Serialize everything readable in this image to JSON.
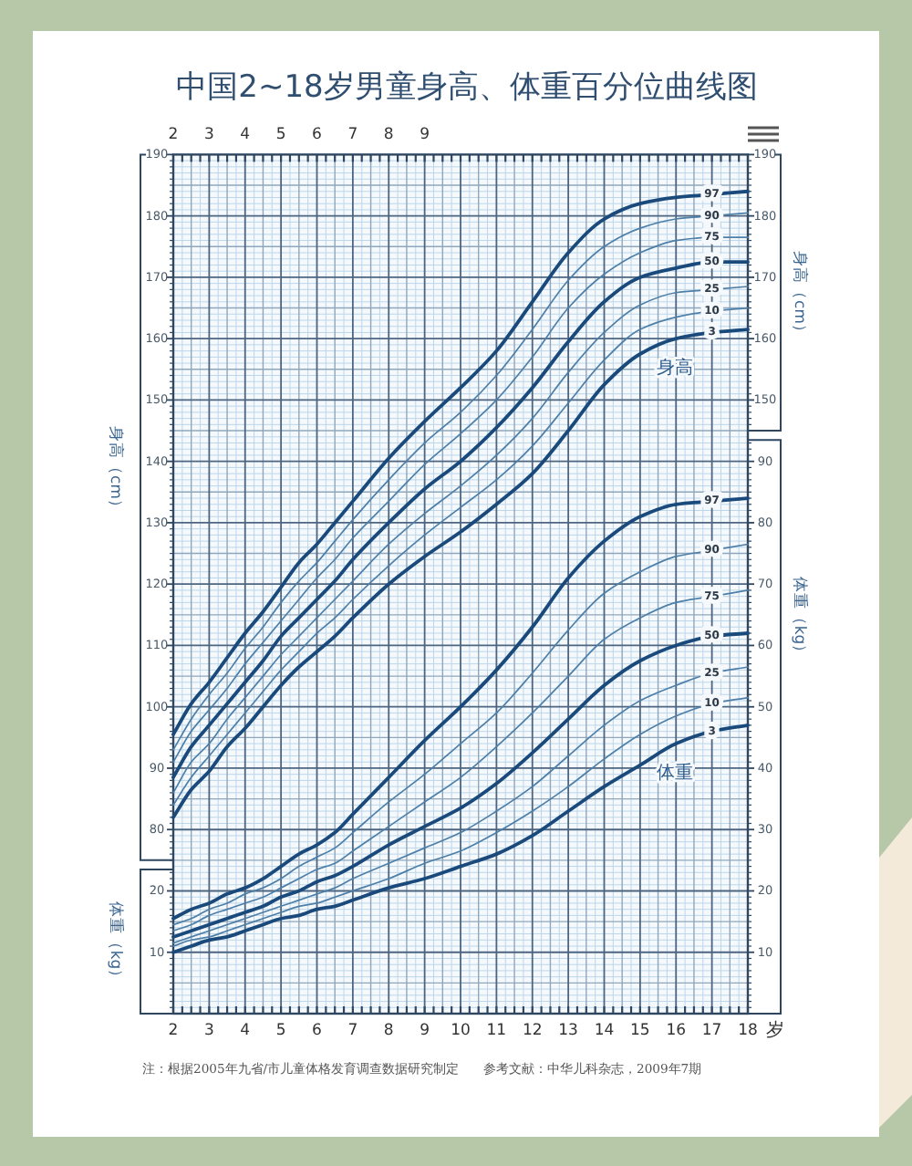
{
  "chart_data": [
    {
      "type": "line",
      "title": "中国2~18岁男童身高、体重百分位曲线图",
      "xlabel": "岁",
      "ylabel": "身高（cm）",
      "y2label": "身高（cm）",
      "x": [
        2,
        2.5,
        3,
        3.5,
        4,
        4.5,
        5,
        5.5,
        6,
        6.5,
        7,
        8,
        9,
        10,
        11,
        12,
        13,
        14,
        15,
        16,
        17,
        18
      ],
      "xlim": [
        2,
        18
      ],
      "xticks": [
        2,
        {
          "value": 2.25,
          "label": null
        },
        {
          "value": 2.5,
          "label": null
        },
        {
          "value": 2.75,
          "label": null
        },
        3,
        {
          "value": 3.25,
          "label": null
        },
        {
          "value": 3.5,
          "label": null
        },
        {
          "value": 3.75,
          "label": null
        },
        4,
        {
          "value": 4.25,
          "label": null
        },
        {
          "value": 4.5,
          "label": null
        },
        {
          "value": 4.75,
          "label": null
        },
        5,
        {
          "value": 5.25,
          "label": null
        },
        {
          "value": 5.5,
          "label": null
        },
        {
          "value": 5.75,
          "label": null
        },
        6,
        {
          "value": 6.25,
          "label": null
        },
        {
          "value": 6.5,
          "label": null
        },
        {
          "value": 6.75,
          "label": null
        },
        7,
        {
          "value": 7.25,
          "label": null
        },
        {
          "value": 7.5,
          "label": null
        },
        {
          "value": 7.75,
          "label": null
        },
        8,
        {
          "value": 8.25,
          "label": null
        },
        {
          "value": 8.5,
          "label": null
        },
        {
          "value": 8.75,
          "label": null
        },
        9,
        {
          "value": 9.25,
          "label": null
        },
        {
          "value": 9.5,
          "label": null
        },
        {
          "value": 9.75,
          "label": null
        },
        10,
        {
          "value": 10.25,
          "label": null
        },
        {
          "value": 10.5,
          "label": null
        },
        {
          "value": 10.75,
          "label": null
        },
        11,
        {
          "value": 11.25,
          "label": null
        },
        {
          "value": 11.5,
          "label": null
        },
        {
          "value": 11.75,
          "label": null
        },
        12,
        {
          "value": 12.25,
          "label": null
        },
        {
          "value": 12.5,
          "label": null
        },
        {
          "value": 12.75,
          "label": null
        },
        13,
        {
          "value": 13.25,
          "label": null
        },
        {
          "value": 13.5,
          "label": null
        },
        {
          "value": 13.75,
          "label": null
        },
        14,
        {
          "value": 14.25,
          "label": null
        },
        {
          "value": 14.5,
          "label": null
        },
        {
          "value": 14.75,
          "label": null
        },
        15,
        {
          "value": 15.25,
          "label": null
        },
        {
          "value": 15.5,
          "label": null
        },
        {
          "value": 15.75,
          "label": null
        },
        16,
        {
          "value": 16.25,
          "label": null
        },
        {
          "value": 16.5,
          "label": null
        },
        {
          "value": 16.75,
          "label": null
        },
        17,
        {
          "value": 17.25,
          "label": null
        },
        {
          "value": 17.5,
          "label": null
        },
        {
          "value": 17.75,
          "label": null
        },
        18
      ],
      "x2lim": [
        2,
        18
      ],
      "x2ticks": [
        2,
        3,
        4,
        5,
        6,
        7,
        8,
        9
      ],
      "ylim": [
        50,
        190
      ],
      "yticks": [
        {
          "value": 51,
          "label": null
        },
        {
          "value": 52,
          "label": null
        },
        {
          "value": 53,
          "label": null
        },
        {
          "value": 54,
          "label": null
        },
        {
          "value": 55,
          "label": null
        },
        {
          "value": 56,
          "label": null
        },
        {
          "value": 57,
          "label": null
        },
        {
          "value": 58,
          "label": null
        },
        {
          "value": 59,
          "label": null
        },
        {
          "value": 60,
          "label": null
        },
        {
          "value": 61,
          "label": null
        },
        {
          "value": 62,
          "label": null
        },
        {
          "value": 63,
          "label": null
        },
        {
          "value": 64,
          "label": null
        },
        {
          "value": 65,
          "label": null
        },
        {
          "value": 66,
          "label": null
        },
        {
          "value": 67,
          "label": null
        },
        {
          "value": 68,
          "label": null
        },
        {
          "value": 69,
          "label": null
        },
        {
          "value": 70,
          "label": null
        },
        {
          "value": 71,
          "label": null
        },
        {
          "value": 72,
          "label": null
        },
        {
          "value": 73,
          "label": null
        },
        {
          "value": 74,
          "label": null
        },
        {
          "value": 75,
          "label": null
        },
        {
          "value": 76,
          "label": null
        },
        {
          "value": 77,
          "label": null
        },
        {
          "value": 78,
          "label": null
        },
        {
          "value": 79,
          "label": null
        },
        80,
        {
          "value": 81,
          "label": null
        },
        {
          "value": 82,
          "label": null
        },
        {
          "value": 83,
          "label": null
        },
        {
          "value": 84,
          "label": null
        },
        {
          "value": 85,
          "label": null
        },
        {
          "value": 86,
          "label": null
        },
        {
          "value": 87,
          "label": null
        },
        {
          "value": 88,
          "label": null
        },
        {
          "value": 89,
          "label": null
        },
        90,
        {
          "value": 91,
          "label": null
        },
        {
          "value": 92,
          "label": null
        },
        {
          "value": 93,
          "label": null
        },
        {
          "value": 94,
          "label": null
        },
        {
          "value": 95,
          "label": null
        },
        {
          "value": 96,
          "label": null
        },
        {
          "value": 97,
          "label": null
        },
        {
          "value": 98,
          "label": null
        },
        {
          "value": 99,
          "label": null
        },
        100,
        {
          "value": 101,
          "label": null
        },
        {
          "value": 102,
          "label": null
        },
        {
          "value": 103,
          "label": null
        },
        {
          "value": 104,
          "label": null
        },
        {
          "value": 105,
          "label": null
        },
        {
          "value": 106,
          "label": null
        },
        {
          "value": 107,
          "label": null
        },
        {
          "value": 108,
          "label": null
        },
        {
          "value": 109,
          "label": null
        },
        110,
        {
          "value": 111,
          "label": null
        },
        {
          "value": 112,
          "label": null
        },
        {
          "value": 113,
          "label": null
        },
        {
          "value": 114,
          "label": null
        },
        {
          "value": 115,
          "label": null
        },
        {
          "value": 116,
          "label": null
        },
        {
          "value": 117,
          "label": null
        },
        {
          "value": 118,
          "label": null
        },
        {
          "value": 119,
          "label": null
        },
        120,
        {
          "value": 121,
          "label": null
        },
        {
          "value": 122,
          "label": null
        },
        {
          "value": 123,
          "label": null
        },
        {
          "value": 124,
          "label": null
        },
        {
          "value": 125,
          "label": null
        },
        {
          "value": 126,
          "label": null
        },
        {
          "value": 127,
          "label": null
        },
        {
          "value": 128,
          "label": null
        },
        {
          "value": 129,
          "label": null
        },
        130,
        {
          "value": 131,
          "label": null
        },
        {
          "value": 132,
          "label": null
        },
        {
          "value": 133,
          "label": null
        },
        {
          "value": 134,
          "label": null
        },
        {
          "value": 135,
          "label": null
        },
        {
          "value": 136,
          "label": null
        },
        {
          "value": 137,
          "label": null
        },
        {
          "value": 138,
          "label": null
        },
        {
          "value": 139,
          "label": null
        },
        140,
        {
          "value": 141,
          "label": null
        },
        {
          "value": 142,
          "label": null
        },
        {
          "value": 143,
          "label": null
        },
        {
          "value": 144,
          "label": null
        },
        {
          "value": 145,
          "label": null
        },
        {
          "value": 146,
          "label": null
        },
        {
          "value": 147,
          "label": null
        },
        {
          "value": 148,
          "label": null
        },
        {
          "value": 149,
          "label": null
        },
        150,
        {
          "value": 151,
          "label": null
        },
        {
          "value": 152,
          "label": null
        },
        {
          "value": 153,
          "label": null
        },
        {
          "value": 154,
          "label": null
        },
        {
          "value": 155,
          "label": null
        },
        {
          "value": 156,
          "label": null
        },
        {
          "value": 157,
          "label": null
        },
        {
          "value": 158,
          "label": null
        },
        {
          "value": 159,
          "label": null
        },
        160,
        {
          "value": 161,
          "label": null
        },
        {
          "value": 162,
          "label": null
        },
        {
          "value": 163,
          "label": null
        },
        {
          "value": 164,
          "label": null
        },
        {
          "value": 165,
          "label": null
        },
        {
          "value": 166,
          "label": null
        },
        {
          "value": 167,
          "label": null
        },
        {
          "value": 168,
          "label": null
        },
        {
          "value": 169,
          "label": null
        },
        170,
        {
          "value": 171,
          "label": null
        },
        {
          "value": 172,
          "label": null
        },
        {
          "value": 173,
          "label": null
        },
        {
          "value": 174,
          "label": null
        },
        {
          "value": 175,
          "label": null
        },
        {
          "value": 176,
          "label": null
        },
        {
          "value": 177,
          "label": null
        },
        {
          "value": 178,
          "label": null
        },
        {
          "value": 179,
          "label": null
        },
        180,
        {
          "value": 181,
          "label": null
        },
        {
          "value": 182,
          "label": null
        },
        {
          "value": 183,
          "label": null
        },
        {
          "value": 184,
          "label": null
        },
        {
          "value": 185,
          "label": null
        },
        {
          "value": 186,
          "label": null
        },
        {
          "value": 187,
          "label": null
        },
        {
          "value": 188,
          "label": null
        },
        {
          "value": 189,
          "label": null
        },
        190
      ],
      "y2lim": [
        50,
        190
      ],
      "y2ticks": [
        {
          "value": 146,
          "label": null
        },
        {
          "value": 147,
          "label": null
        },
        {
          "value": 148,
          "label": null
        },
        {
          "value": 149,
          "label": null
        },
        150,
        {
          "value": 151,
          "label": null
        },
        {
          "value": 152,
          "label": null
        },
        {
          "value": 153,
          "label": null
        },
        {
          "value": 154,
          "label": null
        },
        {
          "value": 155,
          "label": null
        },
        {
          "value": 156,
          "label": null
        },
        {
          "value": 157,
          "label": null
        },
        {
          "value": 158,
          "label": null
        },
        {
          "value": 159,
          "label": null
        },
        160,
        {
          "value": 161,
          "label": null
        },
        {
          "value": 162,
          "label": null
        },
        {
          "value": 163,
          "label": null
        },
        {
          "value": 164,
          "label": null
        },
        {
          "value": 165,
          "label": null
        },
        {
          "value": 166,
          "label": null
        },
        {
          "value": 167,
          "label": null
        },
        {
          "value": 168,
          "label": null
        },
        {
          "value": 169,
          "label": null
        },
        170,
        {
          "value": 171,
          "label": null
        },
        {
          "value": 172,
          "label": null
        },
        {
          "value": 173,
          "label": null
        },
        {
          "value": 174,
          "label": null
        },
        {
          "value": 175,
          "label": null
        },
        {
          "value": 176,
          "label": null
        },
        {
          "value": 177,
          "label": null
        },
        {
          "value": 178,
          "label": null
        },
        {
          "value": 179,
          "label": null
        },
        180,
        {
          "value": 181,
          "label": null
        },
        {
          "value": 182,
          "label": null
        },
        {
          "value": 183,
          "label": null
        },
        {
          "value": 184,
          "label": null
        },
        {
          "value": 185,
          "label": null
        },
        {
          "value": 186,
          "label": null
        },
        {
          "value": 187,
          "label": null
        },
        {
          "value": 188,
          "label": null
        },
        {
          "value": 189,
          "label": null
        },
        190
      ],
      "grid": true,
      "series": [
        {
          "name": "97",
          "color": "#1a4a7c",
          "values": [
            95.5,
            100.5,
            104,
            108,
            112,
            115.5,
            119.5,
            123.5,
            126.5,
            130,
            133.5,
            140.5,
            146.5,
            152,
            158,
            166,
            174,
            179.5,
            182,
            183,
            183.5,
            184
          ]
        },
        {
          "name": "90",
          "color": "#4d7fa8",
          "values": [
            93,
            98,
            102,
            105.5,
            109.5,
            113,
            117,
            120.5,
            123.5,
            127,
            130.5,
            137,
            143,
            148,
            154,
            161.5,
            169.5,
            175,
            178,
            179.5,
            180,
            180.5
          ]
        },
        {
          "name": "75",
          "color": "#4d7fa8",
          "values": [
            91,
            96,
            99.5,
            103,
            107,
            110.5,
            114,
            117.5,
            121,
            124,
            127.5,
            133.5,
            139.5,
            144.5,
            150,
            157,
            165,
            170.5,
            174,
            176,
            176.5,
            176.5
          ]
        },
        {
          "name": "50",
          "color": "#1a4a7c",
          "values": [
            88.5,
            93.5,
            97,
            100.5,
            104,
            107.5,
            111.5,
            114.5,
            117.5,
            120.5,
            124,
            130,
            135.5,
            140,
            145.5,
            152,
            159.5,
            166,
            170,
            171.5,
            172.5,
            172.5
          ]
        },
        {
          "name": "25",
          "color": "#4d7fa8",
          "values": [
            86,
            91,
            94,
            98,
            101.5,
            105,
            108.5,
            111.5,
            114.5,
            117.5,
            120.5,
            126.5,
            131.5,
            136,
            141,
            147,
            154.5,
            161,
            165.5,
            167.5,
            168,
            168.5
          ]
        },
        {
          "name": "10",
          "color": "#4d7fa8",
          "values": [
            84,
            88.5,
            92,
            95.5,
            99,
            102.5,
            106,
            109,
            112,
            114.5,
            117.5,
            123,
            128,
            132.5,
            137,
            142.5,
            149.5,
            156.5,
            161.5,
            163.5,
            164.5,
            165
          ]
        },
        {
          "name": "3",
          "color": "#1a4a7c",
          "values": [
            82,
            86.5,
            89.5,
            93.5,
            96.5,
            100,
            103.5,
            106.5,
            109,
            111.5,
            114.5,
            120,
            124.5,
            128.5,
            133,
            138,
            145,
            152.5,
            157.5,
            160,
            161,
            161.5
          ]
        }
      ],
      "annotations": [
        "身高",
        "注：根据2005年九省/市儿童体格发育调查数据研究制定",
        "参考文献：中华儿科杂志，2009年7期"
      ]
    },
    {
      "type": "line",
      "ylabel": "体重（kg）",
      "y2label": "体重（kg）",
      "tick_labels": "y",
      "x": [
        2,
        2.5,
        3,
        3.5,
        4,
        4.5,
        5,
        5.5,
        6,
        6.5,
        7,
        8,
        9,
        10,
        11,
        12,
        13,
        14,
        15,
        16,
        17,
        18
      ],
      "xlim": [
        2,
        18
      ],
      "ylim": [
        0,
        140
      ],
      "yticks": [
        {
          "value": 1,
          "label": null
        },
        {
          "value": 2,
          "label": null
        },
        {
          "value": 3,
          "label": null
        },
        {
          "value": 4,
          "label": null
        },
        {
          "value": 5,
          "label": null
        },
        {
          "value": 6,
          "label": null
        },
        {
          "value": 7,
          "label": null
        },
        {
          "value": 8,
          "label": null
        },
        {
          "value": 9,
          "label": null
        },
        10,
        {
          "value": 11,
          "label": null
        },
        {
          "value": 12,
          "label": null
        },
        {
          "value": 13,
          "label": null
        },
        {
          "value": 14,
          "label": null
        },
        {
          "value": 15,
          "label": null
        },
        {
          "value": 16,
          "label": null
        },
        {
          "value": 17,
          "label": null
        },
        {
          "value": 18,
          "label": null
        },
        {
          "value": 19,
          "label": null
        },
        20,
        {
          "value": 21,
          "label": null
        },
        {
          "value": 22,
          "label": null
        },
        {
          "value": 23,
          "label": null
        }
      ],
      "y2lim": [
        0,
        140
      ],
      "y2ticks": [
        {
          "value": 1,
          "label": null
        },
        {
          "value": 2,
          "label": null
        },
        {
          "value": 3,
          "label": null
        },
        {
          "value": 4,
          "label": null
        },
        {
          "value": 5,
          "label": null
        },
        {
          "value": 6,
          "label": null
        },
        {
          "value": 7,
          "label": null
        },
        {
          "value": 8,
          "label": null
        },
        {
          "value": 9,
          "label": null
        },
        10,
        {
          "value": 11,
          "label": null
        },
        {
          "value": 12,
          "label": null
        },
        {
          "value": 13,
          "label": null
        },
        {
          "value": 14,
          "label": null
        },
        {
          "value": 15,
          "label": null
        },
        {
          "value": 16,
          "label": null
        },
        {
          "value": 17,
          "label": null
        },
        {
          "value": 18,
          "label": null
        },
        {
          "value": 19,
          "label": null
        },
        20,
        {
          "value": 21,
          "label": null
        },
        {
          "value": 22,
          "label": null
        },
        {
          "value": 23,
          "label": null
        },
        {
          "value": 24,
          "label": null
        },
        {
          "value": 25,
          "label": null
        },
        {
          "value": 26,
          "label": null
        },
        {
          "value": 27,
          "label": null
        },
        {
          "value": 28,
          "label": null
        },
        {
          "value": 29,
          "label": null
        },
        30,
        {
          "value": 31,
          "label": null
        },
        {
          "value": 32,
          "label": null
        },
        {
          "value": 33,
          "label": null
        },
        {
          "value": 34,
          "label": null
        },
        {
          "value": 35,
          "label": null
        },
        {
          "value": 36,
          "label": null
        },
        {
          "value": 37,
          "label": null
        },
        {
          "value": 38,
          "label": null
        },
        {
          "value": 39,
          "label": null
        },
        40,
        {
          "value": 41,
          "label": null
        },
        {
          "value": 42,
          "label": null
        },
        {
          "value": 43,
          "label": null
        },
        {
          "value": 44,
          "label": null
        },
        {
          "value": 45,
          "label": null
        },
        {
          "value": 46,
          "label": null
        },
        {
          "value": 47,
          "label": null
        },
        {
          "value": 48,
          "label": null
        },
        {
          "value": 49,
          "label": null
        },
        50,
        {
          "value": 51,
          "label": null
        },
        {
          "value": 52,
          "label": null
        },
        {
          "value": 53,
          "label": null
        },
        {
          "value": 54,
          "label": null
        },
        {
          "value": 55,
          "label": null
        },
        {
          "value": 56,
          "label": null
        },
        {
          "value": 57,
          "label": null
        },
        {
          "value": 58,
          "label": null
        },
        {
          "value": 59,
          "label": null
        },
        60,
        {
          "value": 61,
          "label": null
        },
        {
          "value": 62,
          "label": null
        },
        {
          "value": 63,
          "label": null
        },
        {
          "value": 64,
          "label": null
        },
        {
          "value": 65,
          "label": null
        },
        {
          "value": 66,
          "label": null
        },
        {
          "value": 67,
          "label": null
        },
        {
          "value": 68,
          "label": null
        },
        {
          "value": 69,
          "label": null
        },
        70,
        {
          "value": 71,
          "label": null
        },
        {
          "value": 72,
          "label": null
        },
        {
          "value": 73,
          "label": null
        },
        {
          "value": 74,
          "label": null
        },
        {
          "value": 75,
          "label": null
        },
        {
          "value": 76,
          "label": null
        },
        {
          "value": 77,
          "label": null
        },
        {
          "value": 78,
          "label": null
        },
        {
          "value": 79,
          "label": null
        },
        80,
        {
          "value": 81,
          "label": null
        },
        {
          "value": 82,
          "label": null
        },
        {
          "value": 83,
          "label": null
        },
        {
          "value": 84,
          "label": null
        },
        {
          "value": 85,
          "label": null
        },
        {
          "value": 86,
          "label": null
        },
        {
          "value": 87,
          "label": null
        },
        {
          "value": 88,
          "label": null
        },
        {
          "value": 89,
          "label": null
        },
        90,
        {
          "value": 91,
          "label": null
        },
        {
          "value": 92,
          "label": null
        },
        {
          "value": 93,
          "label": null
        }
      ],
      "series": [
        {
          "name": "97",
          "color": "#1a4a7c",
          "values": [
            15.5,
            17,
            18,
            19.5,
            20.5,
            22,
            24,
            26,
            27.5,
            29.5,
            32.5,
            38.5,
            44.5,
            50,
            56,
            63,
            71,
            77,
            81,
            83,
            83.5,
            84
          ]
        },
        {
          "name": "90",
          "color": "#4d7fa8",
          "values": [
            14.5,
            15.5,
            17,
            18,
            19.5,
            20.5,
            22,
            24,
            25.5,
            27,
            29.5,
            34.5,
            39,
            44,
            49,
            55.5,
            62.5,
            68.5,
            72,
            74.5,
            75.5,
            76.5
          ]
        },
        {
          "name": "75",
          "color": "#4d7fa8",
          "values": [
            13.5,
            14.5,
            16,
            17,
            18,
            19,
            20.5,
            22,
            23.5,
            24.5,
            26.5,
            30.5,
            34.5,
            38.5,
            43.5,
            49,
            55,
            61,
            64.5,
            67,
            68,
            69
          ]
        },
        {
          "name": "50",
          "color": "#1a4a7c",
          "values": [
            12.5,
            13.5,
            14.5,
            15.5,
            16.5,
            17.5,
            19,
            20,
            21.5,
            22.5,
            24,
            27.5,
            30.5,
            33.5,
            37.5,
            42.5,
            48,
            53.5,
            57.5,
            60,
            61.5,
            62
          ]
        },
        {
          "name": "25",
          "color": "#4d7fa8",
          "values": [
            11.5,
            12.5,
            13.5,
            14.5,
            15.5,
            16.5,
            17.5,
            18.5,
            19.5,
            20.5,
            22,
            24.5,
            27,
            29.5,
            33,
            37,
            42,
            47,
            51,
            53.5,
            55.5,
            56.5
          ]
        },
        {
          "name": "10",
          "color": "#4d7fa8",
          "values": [
            11,
            12,
            12.5,
            13.5,
            14.5,
            15.5,
            16.5,
            17.5,
            18,
            19,
            20,
            22,
            24.5,
            26.5,
            29.5,
            33,
            37,
            41.5,
            45.5,
            48.5,
            50.5,
            51.5
          ]
        },
        {
          "name": "3",
          "color": "#1a4a7c",
          "values": [
            10,
            11,
            12,
            12.5,
            13.5,
            14.5,
            15.5,
            16,
            17,
            17.5,
            18.5,
            20.5,
            22,
            24,
            26,
            29,
            33,
            37,
            40.5,
            44,
            46,
            47
          ]
        }
      ],
      "annotations": [
        "体重"
      ]
    }
  ]
}
